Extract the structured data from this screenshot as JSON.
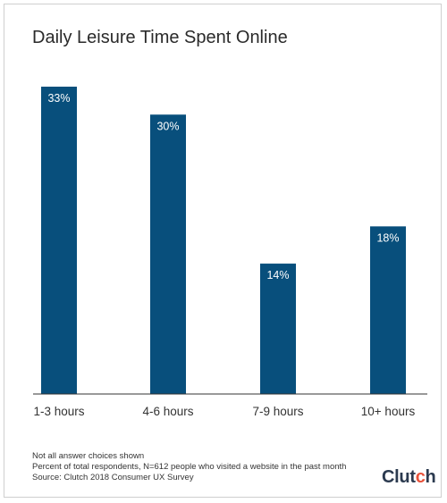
{
  "chart_data": {
    "type": "bar",
    "title": "Daily Leisure Time Spent Online",
    "categories": [
      "1-3 hours",
      "4-6 hours",
      "7-9 hours",
      "10+ hours"
    ],
    "values": [
      33,
      30,
      14,
      18
    ],
    "value_labels": [
      "33%",
      "30%",
      "14%",
      "18%"
    ],
    "ylim": [
      0,
      33
    ],
    "xlabel": "",
    "ylabel": "",
    "grid": false,
    "bar_color": "#084f7c",
    "label_color": "#ffffff"
  },
  "notes": [
    "Not all answer choices shown",
    "Percent of total respondents, N=612 people who visited a website in the past month",
    "Source: Clutch 2018 Consumer UX Survey"
  ],
  "brand": {
    "text_start": "Clut",
    "text_dot": "c",
    "text_end": "h",
    "color": "#2b3a4f",
    "accent": "#e8523a"
  }
}
